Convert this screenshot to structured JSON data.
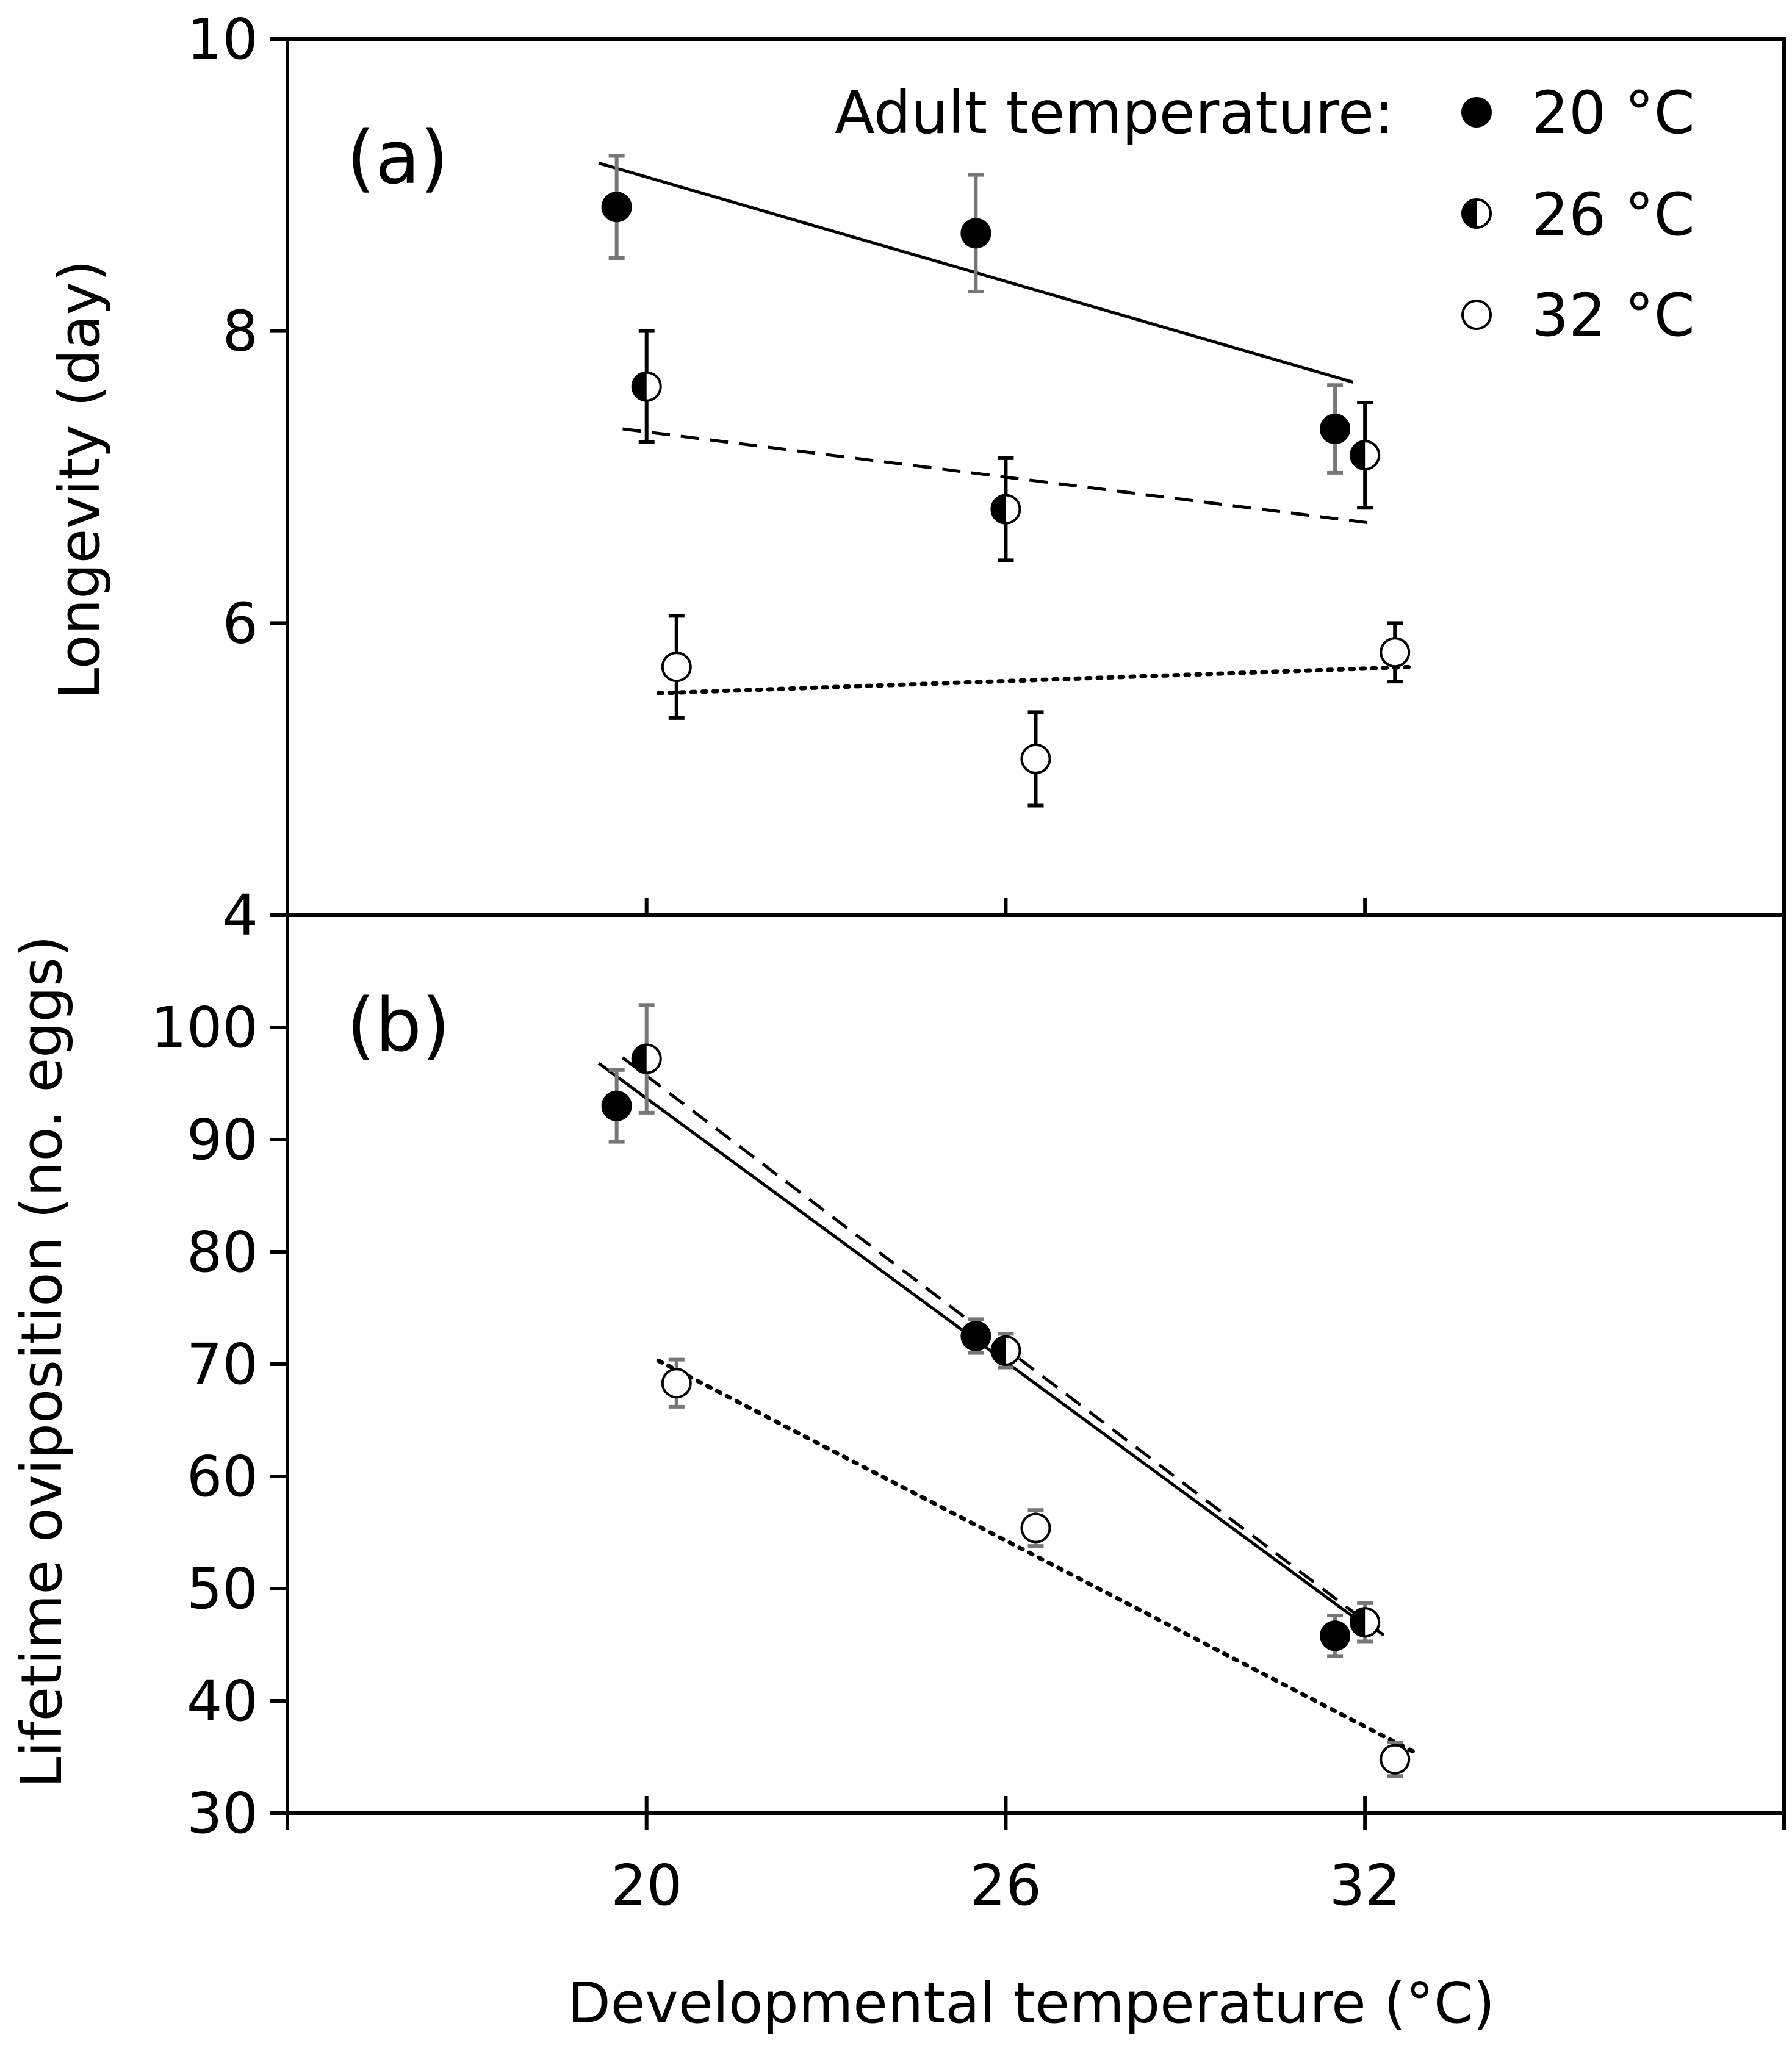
{
  "chart_data": [
    {
      "type": "scatter",
      "panel_label": "(a)",
      "ylabel": "Longevity (day)",
      "xlabel": "",
      "xlim": [
        14,
        39
      ],
      "ylim": [
        4,
        10
      ],
      "yticks": [
        4,
        6,
        8,
        10
      ],
      "xticks": [
        20,
        26,
        32
      ],
      "grid": false,
      "legend": {
        "title": "Adult temperature:",
        "position": "top-right",
        "entries": [
          {
            "label": "20 °C",
            "marker": "filled"
          },
          {
            "label": "26 °C",
            "marker": "half"
          },
          {
            "label": "32 °C",
            "marker": "open"
          }
        ]
      },
      "series": [
        {
          "name": "20 °C",
          "marker": "filled",
          "line": "solid",
          "errcolor": "#777777",
          "points": [
            {
              "x": 19.5,
              "y": 8.85,
              "err": 0.35
            },
            {
              "x": 25.5,
              "y": 8.67,
              "err": 0.4
            },
            {
              "x": 31.5,
              "y": 7.33,
              "err": 0.3
            }
          ],
          "fit": [
            [
              19.2,
              9.15
            ],
            [
              31.8,
              7.65
            ]
          ]
        },
        {
          "name": "26 °C",
          "marker": "half",
          "line": "dashed",
          "errcolor": "#000000",
          "points": [
            {
              "x": 20.0,
              "y": 7.62,
              "err": 0.38
            },
            {
              "x": 26.0,
              "y": 6.78,
              "err": 0.35
            },
            {
              "x": 32.0,
              "y": 7.15,
              "err": 0.36
            }
          ],
          "fit": [
            [
              19.6,
              7.33
            ],
            [
              32.2,
              6.68
            ]
          ]
        },
        {
          "name": "32 °C",
          "marker": "open",
          "line": "dotted",
          "errcolor": "#000000",
          "points": [
            {
              "x": 20.5,
              "y": 5.7,
              "err": 0.35
            },
            {
              "x": 26.5,
              "y": 5.07,
              "err": 0.32
            },
            {
              "x": 32.5,
              "y": 5.8,
              "err": 0.2
            }
          ],
          "fit": [
            [
              20.2,
              5.52
            ],
            [
              32.8,
              5.7
            ]
          ]
        }
      ]
    },
    {
      "type": "scatter",
      "panel_label": "(b)",
      "ylabel": "Lifetime oviposition (no. eggs)",
      "xlabel": "Developmental temperature (°C)",
      "xlim": [
        14,
        39
      ],
      "ylim": [
        30,
        110
      ],
      "yticks": [
        30,
        40,
        50,
        60,
        70,
        80,
        90,
        100
      ],
      "xticks": [
        20,
        26,
        32
      ],
      "grid": false,
      "series": [
        {
          "name": "20 °C",
          "marker": "filled",
          "line": "solid",
          "errcolor": "#777777",
          "points": [
            {
              "x": 19.5,
              "y": 93,
              "err": 3.2
            },
            {
              "x": 25.5,
              "y": 72.5,
              "err": 1.5
            },
            {
              "x": 31.5,
              "y": 45.8,
              "err": 1.8
            }
          ],
          "fit": [
            [
              19.2,
              96.8
            ],
            [
              31.8,
              47.5
            ]
          ]
        },
        {
          "name": "26 °C",
          "marker": "half",
          "line": "dashed",
          "errcolor": "#777777",
          "points": [
            {
              "x": 20.0,
              "y": 97.2,
              "err": 4.8
            },
            {
              "x": 26.0,
              "y": 71.2,
              "err": 1.5
            },
            {
              "x": 32.0,
              "y": 47.0,
              "err": 1.7
            }
          ],
          "fit": [
            [
              19.6,
              97.3
            ],
            [
              32.4,
              45.5
            ]
          ]
        },
        {
          "name": "32 °C",
          "marker": "open",
          "line": "dotted",
          "errcolor": "#777777",
          "points": [
            {
              "x": 20.5,
              "y": 68.3,
              "err": 2.1
            },
            {
              "x": 26.5,
              "y": 55.4,
              "err": 1.6
            },
            {
              "x": 32.5,
              "y": 34.8,
              "err": 1.5
            }
          ],
          "fit": [
            [
              20.2,
              70.3
            ],
            [
              32.8,
              35.5
            ]
          ]
        }
      ]
    }
  ]
}
